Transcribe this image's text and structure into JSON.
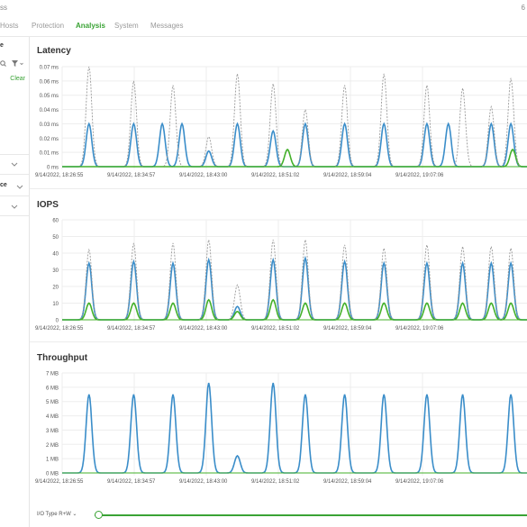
{
  "app": {
    "title_fragment": "ss",
    "top_right": "6"
  },
  "nav": {
    "tabs": [
      "Hosts",
      "Protection",
      "Analysis",
      "System",
      "Messages"
    ],
    "active": "Analysis"
  },
  "sidebar": {
    "header": "e",
    "clear_label": "Clear",
    "section1": "ce",
    "filter_icon": "filter-icon",
    "search_icon": "search-icon"
  },
  "footer": {
    "io_type_label": "I/O Type R+W"
  },
  "colors": {
    "read": "#3a8dc9",
    "write": "#43b02a",
    "dashed": "#9a9a9a",
    "accent": "#3aa335"
  },
  "charts": [
    {
      "title": "Latency",
      "chart_data": {
        "type": "line",
        "y_ticks": [
          "0 ms",
          "0.01 ms",
          "0.02 ms",
          "0.03 ms",
          "0.04 ms",
          "0.05 ms",
          "0.06 ms",
          "0.07 ms"
        ],
        "ylim": [
          0,
          0.07
        ],
        "x_ticks": [
          "9/14/2022, 18:26:55",
          "9/14/2022, 18:34:57",
          "9/14/2022, 18:43:00",
          "9/14/2022, 18:51:02",
          "9/14/2022, 18:59:04",
          "9/14/2022, 19:07:06"
        ],
        "grid": true,
        "series": [
          {
            "style": "solid",
            "color": "#3a8dc9",
            "peaks": [
              [
                15,
                0.03
              ],
              [
                40,
                0.03
              ],
              [
                56,
                0.03
              ],
              [
                67,
                0.03
              ],
              [
                82,
                0.011
              ],
              [
                98,
                0.03
              ],
              [
                118,
                0.025
              ],
              [
                136,
                0.03
              ],
              [
                158,
                0.03
              ],
              [
                180,
                0.03
              ],
              [
                204,
                0.03
              ],
              [
                216,
                0.03
              ],
              [
                240,
                0.03
              ],
              [
                251,
                0.03
              ]
            ]
          },
          {
            "style": "solid",
            "color": "#43b02a",
            "peaks": [
              [
                126,
                0.012
              ],
              [
                252,
                0.012
              ]
            ]
          },
          {
            "style": "dashed",
            "color": "#9a9a9a",
            "peaks": [
              [
                15,
                0.07
              ],
              [
                40,
                0.06
              ],
              [
                62,
                0.057
              ],
              [
                82,
                0.021
              ],
              [
                98,
                0.065
              ],
              [
                118,
                0.058
              ],
              [
                136,
                0.04
              ],
              [
                158,
                0.057
              ],
              [
                180,
                0.065
              ],
              [
                204,
                0.057
              ],
              [
                224,
                0.055
              ],
              [
                240,
                0.042
              ],
              [
                251,
                0.062
              ]
            ]
          }
        ]
      }
    },
    {
      "title": "IOPS",
      "chart_data": {
        "type": "line",
        "y_ticks": [
          "0",
          "10",
          "20",
          "30",
          "40",
          "50",
          "60"
        ],
        "ylim": [
          0,
          60
        ],
        "x_ticks": [
          "9/14/2022, 18:26:55",
          "9/14/2022, 18:34:57",
          "9/14/2022, 18:43:00",
          "9/14/2022, 18:51:02",
          "9/14/2022, 18:59:04",
          "9/14/2022, 19:07:06"
        ],
        "grid": true,
        "series": [
          {
            "style": "solid",
            "color": "#3a8dc9",
            "peaks": [
              [
                15,
                34
              ],
              [
                40,
                35
              ],
              [
                62,
                34
              ],
              [
                82,
                36
              ],
              [
                98,
                8
              ],
              [
                118,
                36
              ],
              [
                136,
                37
              ],
              [
                158,
                35
              ],
              [
                180,
                34
              ],
              [
                204,
                34
              ],
              [
                224,
                34
              ],
              [
                240,
                34
              ],
              [
                251,
                34
              ]
            ]
          },
          {
            "style": "solid",
            "color": "#43b02a",
            "peaks": [
              [
                15,
                10
              ],
              [
                40,
                10
              ],
              [
                62,
                10
              ],
              [
                82,
                12
              ],
              [
                98,
                5
              ],
              [
                118,
                12
              ],
              [
                136,
                10
              ],
              [
                158,
                10
              ],
              [
                180,
                10
              ],
              [
                204,
                10
              ],
              [
                224,
                10
              ],
              [
                240,
                10
              ],
              [
                251,
                10
              ]
            ]
          },
          {
            "style": "dashed",
            "color": "#9a9a9a",
            "peaks": [
              [
                15,
                42
              ],
              [
                40,
                46
              ],
              [
                62,
                46
              ],
              [
                82,
                48
              ],
              [
                98,
                21
              ],
              [
                118,
                48
              ],
              [
                136,
                48
              ],
              [
                158,
                45
              ],
              [
                180,
                43
              ],
              [
                204,
                45
              ],
              [
                224,
                44
              ],
              [
                240,
                44
              ],
              [
                251,
                43
              ]
            ]
          }
        ]
      }
    },
    {
      "title": "Throughput",
      "chart_data": {
        "type": "line",
        "y_ticks": [
          "0 MB",
          "1 MB",
          "2 MB",
          "3 MB",
          "4 MB",
          "5 MB",
          "6 MB",
          "7 MB"
        ],
        "ylim": [
          0,
          7
        ],
        "x_ticks": [
          "9/14/2022, 18:26:55",
          "9/14/2022, 18:34:57",
          "9/14/2022, 18:43:00",
          "9/14/2022, 18:51:02",
          "9/14/2022, 18:59:04",
          "9/14/2022, 19:07:06"
        ],
        "grid": true,
        "series": [
          {
            "style": "solid",
            "color": "#3a8dc9",
            "peaks": [
              [
                15,
                5.5
              ],
              [
                40,
                5.5
              ],
              [
                62,
                5.5
              ],
              [
                82,
                6.3
              ],
              [
                98,
                1.2
              ],
              [
                118,
                6.3
              ],
              [
                136,
                5.5
              ],
              [
                158,
                5.5
              ],
              [
                180,
                5.5
              ],
              [
                204,
                5.5
              ],
              [
                224,
                5.5
              ],
              [
                251,
                5.5
              ]
            ]
          }
        ]
      }
    }
  ]
}
